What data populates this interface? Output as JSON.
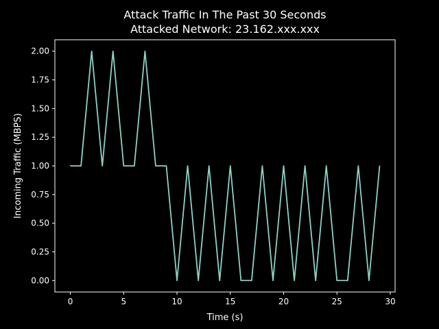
{
  "chart_data": {
    "type": "line",
    "title": "Attack Traffic In The Past 30 Seconds",
    "subtitle": "Attacked Network: 23.162.xxx.xxx",
    "xlabel": "Time (s)",
    "ylabel": "Incoming Traffic (MBPS)",
    "xlim": [
      -1.45,
      30.45
    ],
    "ylim": [
      -0.1,
      2.1
    ],
    "x_ticks": [
      0,
      5,
      10,
      15,
      20,
      25,
      30
    ],
    "y_ticks": [
      0.0,
      0.25,
      0.5,
      0.75,
      1.0,
      1.25,
      1.5,
      1.75,
      2.0
    ],
    "x_tick_labels": [
      "0",
      "5",
      "10",
      "15",
      "20",
      "25",
      "30"
    ],
    "y_tick_labels": [
      "0.00",
      "0.25",
      "0.50",
      "0.75",
      "1.00",
      "1.25",
      "1.50",
      "1.75",
      "2.00"
    ],
    "grid": false,
    "background": "#000000",
    "axes_color": "#ffffff",
    "series": [
      {
        "color": "#8dd3c7",
        "x": [
          0,
          1,
          2,
          3,
          4,
          5,
          6,
          7,
          8,
          9,
          10,
          11,
          12,
          13,
          14,
          15,
          16,
          17,
          18,
          19,
          20,
          21,
          22,
          23,
          24,
          25,
          26,
          27,
          28,
          29
        ],
        "y": [
          1,
          1,
          2,
          1,
          2,
          1,
          1,
          2,
          1,
          1,
          0,
          1,
          0,
          1,
          0,
          1,
          0,
          0,
          1,
          0,
          1,
          0,
          1,
          0,
          1,
          0,
          0,
          1,
          0,
          1
        ]
      }
    ]
  }
}
